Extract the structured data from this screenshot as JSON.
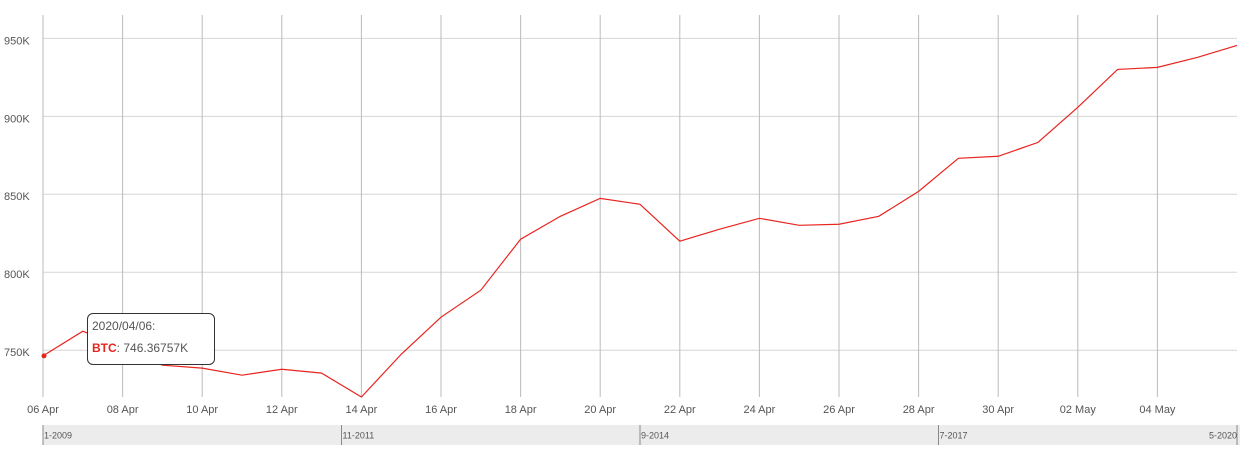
{
  "chart_data": {
    "type": "line",
    "categories": [
      "06 Apr",
      null,
      "08 Apr",
      null,
      "10 Apr",
      null,
      "12 Apr",
      null,
      "14 Apr",
      null,
      "16 Apr",
      null,
      "18 Apr",
      null,
      "20 Apr",
      null,
      "22 Apr",
      null,
      "24 Apr",
      null,
      "26 Apr",
      null,
      "28 Apr",
      null,
      "30 Apr",
      null,
      "02 May",
      null,
      "04 May",
      null,
      null
    ],
    "series": [
      {
        "name": "BTC",
        "color": "#e8241f",
        "values": [
          746367.57,
          762200,
          752000,
          740400,
          738500,
          734000,
          737800,
          735300,
          720000,
          747400,
          771200,
          788500,
          821200,
          835900,
          847400,
          843600,
          819900,
          827600,
          834600,
          830100,
          830800,
          835900,
          851900,
          873100,
          874400,
          883300,
          905800,
          930100,
          931400,
          937800,
          945500
        ]
      }
    ],
    "ylim": [
      720000,
      965000
    ],
    "yticks": [
      {
        "value": 750000,
        "label": "750K"
      },
      {
        "value": 800000,
        "label": "800K"
      },
      {
        "value": 850000,
        "label": "850K"
      },
      {
        "value": 900000,
        "label": "900K"
      },
      {
        "value": 950000,
        "label": "950K"
      }
    ],
    "grid": true,
    "tooltip": {
      "title": "2020/04/06:",
      "value": "746.36757K"
    },
    "navigator": {
      "labels": [
        "1-2009",
        "11-2011",
        "9-2014",
        "7-2017",
        "5-2020"
      ]
    }
  }
}
